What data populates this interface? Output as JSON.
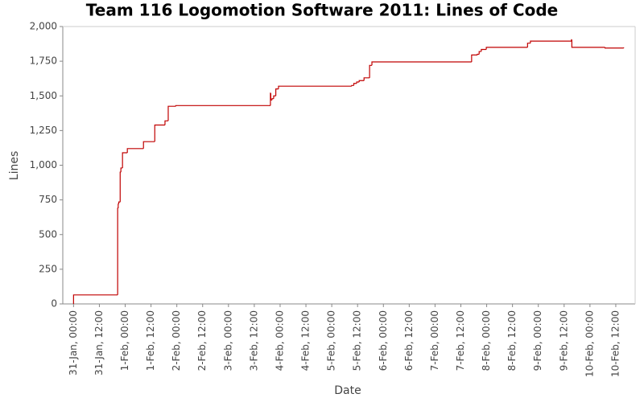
{
  "chart_data": {
    "type": "step",
    "title": "Team 116 Logomotion Software 2011: Lines of Code",
    "x_label": "Date",
    "y_label": "Lines",
    "x": [
      "31-Jan, 00:00",
      "31-Jan, 20:30",
      "31-Jan, 20:45",
      "31-Jan, 21:00",
      "31-Jan, 21:40",
      "31-Jan, 22:00",
      "31-Jan, 22:45",
      "1-Feb, 01:00",
      "1-Feb, 08:30",
      "1-Feb, 13:45",
      "1-Feb, 18:30",
      "1-Feb, 20:00",
      "1-Feb, 23:30",
      "3-Feb, 19:30",
      "3-Feb, 19:40",
      "3-Feb, 20:15",
      "3-Feb, 21:00",
      "3-Feb, 22:00",
      "3-Feb, 23:15",
      "5-Feb, 09:15",
      "5-Feb, 10:15",
      "5-Feb, 11:35",
      "5-Feb, 12:45",
      "5-Feb, 15:00",
      "5-Feb, 17:35",
      "5-Feb, 18:40",
      "7-Feb, 17:00",
      "7-Feb, 19:40",
      "7-Feb, 20:30",
      "7-Feb, 21:30",
      "7-Feb, 23:50",
      "8-Feb, 19:00",
      "8-Feb, 20:20",
      "9-Feb, 15:25",
      "9-Feb, 15:35",
      "10-Feb, 07:00",
      "10-Feb, 15:40"
    ],
    "values": [
      65,
      690,
      720,
      735,
      950,
      980,
      1090,
      1120,
      1170,
      1290,
      1320,
      1425,
      1430,
      1520,
      1470,
      1480,
      1500,
      1550,
      1570,
      1575,
      1590,
      1600,
      1610,
      1630,
      1720,
      1745,
      1795,
      1800,
      1820,
      1835,
      1850,
      1880,
      1895,
      1905,
      1850,
      1845,
      1850
    ],
    "color": "#c00000",
    "xlim": [
      "30-Jan, 19:00",
      "10-Feb, 21:00"
    ],
    "xticks": [
      "31-Jan, 00:00",
      "31-Jan, 12:00",
      "1-Feb, 00:00",
      "1-Feb, 12:00",
      "2-Feb, 00:00",
      "2-Feb, 12:00",
      "3-Feb, 00:00",
      "3-Feb, 12:00",
      "4-Feb, 00:00",
      "4-Feb, 12:00",
      "5-Feb, 00:00",
      "5-Feb, 12:00",
      "6-Feb, 00:00",
      "6-Feb, 12:00",
      "7-Feb, 00:00",
      "7-Feb, 12:00",
      "8-Feb, 00:00",
      "8-Feb, 12:00",
      "9-Feb, 00:00",
      "9-Feb, 12:00",
      "10-Feb, 00:00",
      "10-Feb, 12:00"
    ],
    "ylim": [
      0,
      2000
    ],
    "yticks": [
      0,
      250,
      500,
      750,
      {
        "value": 1000,
        "label": "1,000"
      },
      {
        "value": 1250,
        "label": "1,250"
      },
      {
        "value": 1500,
        "label": "1,500"
      },
      {
        "value": 1750,
        "label": "1,750"
      },
      {
        "value": 2000,
        "label": "2,000"
      }
    ],
    "grid": false
  }
}
